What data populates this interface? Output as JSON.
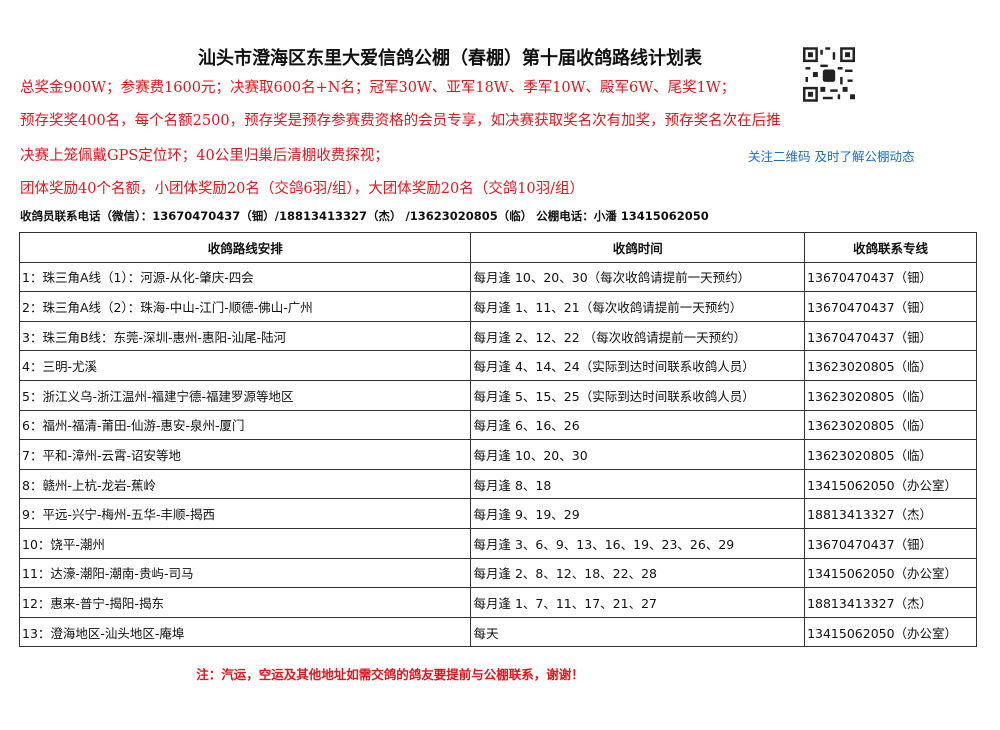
{
  "title": "汕头市澄海区东里大爱信鸽公棚（春棚）第十届收鸽路线计划表",
  "info_lines": [
    "总奖金900W；参赛费1600元；决赛取600名+N名；冠军30W、亚军18W、季军10W、殿军6W、尾奖1W；",
    "预存奖奖400名，每个名额2500，预存奖是预存参赛费资格的会员专享，如决赛获取奖名次有加奖，预存奖名次在后推",
    "决赛上笼佩戴GPS定位环；40公里归巢后清棚收费探视；",
    "团体奖励40个名额，小团体奖励20名（交鸽6羽/组），大团体奖励20名（交鸽10羽/组）"
  ],
  "qr_caption": "关注二维码 及时了解公棚动态",
  "contact": "收鸽员联系电话（微信）：13670470437（钿）/18813413327（杰） /13623020805（临） 公棚电话：小潘 13415062050",
  "table": {
    "headers": [
      "收鸽路线安排",
      "收鸽时间",
      "收鸽联系专线"
    ],
    "rows": [
      [
        "1：珠三角A线（1）：河源-从化-肇庆-四会",
        "每月逢 10、20、30（每次收鸽请提前一天预约）",
        "13670470437（钿）"
      ],
      [
        "2：珠三角A线（2）：珠海-中山-江门-顺德-佛山-广州",
        "每月逢 1、11、21（每次收鸽请提前一天预约）",
        "13670470437（钿）"
      ],
      [
        "3：珠三角B线：东莞-深圳-惠州-惠阳-汕尾-陆河",
        "每月逢 2、12、22 （每次收鸽请提前一天预约）",
        "13670470437（钿）"
      ],
      [
        "4：三明-尤溪",
        "每月逢 4、14、24（实际到达时间联系收鸽人员）",
        "13623020805（临）"
      ],
      [
        "5：浙江义乌-浙江温州-福建宁德-福建罗源等地区",
        "每月逢 5、15、25（实际到达时间联系收鸽人员）",
        "13623020805（临）"
      ],
      [
        "6：福州-福清-莆田-仙游-惠安-泉州-厦门",
        "每月逢 6、16、26",
        "13623020805（临）"
      ],
      [
        "7：平和-漳州-云霄-诏安等地",
        "每月逢 10、20、30",
        "13623020805（临）"
      ],
      [
        "8：赣州-上杭-龙岩-蕉岭",
        "每月逢 8、18",
        "13415062050（办公室）"
      ],
      [
        "9：平远-兴宁-梅州-五华-丰顺-揭西",
        "每月逢 9、19、29",
        "18813413327（杰）"
      ],
      [
        "10：饶平-潮州",
        "每月逢 3、6、9、13、16、19、23、26、29",
        "13670470437（钿）"
      ],
      [
        "11：达濠-潮阳-潮南-贵屿-司马",
        "每月逢 2、8、12、18、22、28",
        "13415062050（办公室）"
      ],
      [
        "12：惠来-普宁-揭阳-揭东",
        "每月逢 1、7、11、17、21、27",
        "18813413327（杰）"
      ],
      [
        "13：澄海地区-汕头地区-庵埠",
        "每天",
        "13415062050（办公室）"
      ]
    ]
  },
  "note": "注：汽运，空运及其他地址如需交鸽的鸽友要提前与公棚联系，谢谢！",
  "colors": {
    "red": "#e8141b",
    "blue": "#1a6ec2"
  }
}
